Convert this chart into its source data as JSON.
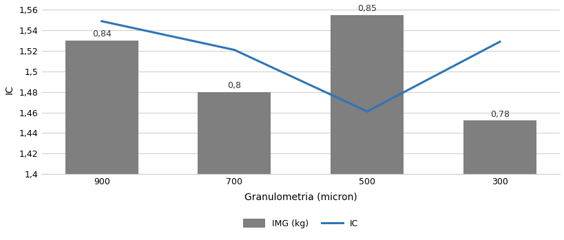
{
  "categories": [
    "900",
    "700",
    "500",
    "300"
  ],
  "bar_values": [
    1.53,
    1.48,
    1.555,
    1.452
  ],
  "bar_labels": [
    "0,84",
    "0,8",
    "0,85",
    "0,78"
  ],
  "line_values": [
    1.549,
    1.521,
    1.461,
    1.529
  ],
  "bar_color": "#7f7f7f",
  "line_color": "#2E75B6",
  "ylabel": "IC",
  "xlabel": "Granulometria (micron)",
  "ylim_min": 1.4,
  "ylim_max": 1.565,
  "yticks": [
    1.4,
    1.42,
    1.44,
    1.46,
    1.48,
    1.5,
    1.52,
    1.54,
    1.56
  ],
  "ytick_labels": [
    "1,4",
    "1,42",
    "1,44",
    "1,46",
    "1,48",
    "1,5",
    "1,52",
    "1,54",
    "1,56"
  ],
  "legend_bar_label": "IMG (kg)",
  "legend_line_label": "IC",
  "background_color": "#ffffff",
  "grid_color": "#d0d0d0",
  "bar_width": 0.55,
  "line_width": 2.2,
  "bar_label_fontsize": 9,
  "axis_label_fontsize": 10,
  "tick_fontsize": 9,
  "legend_fontsize": 9
}
